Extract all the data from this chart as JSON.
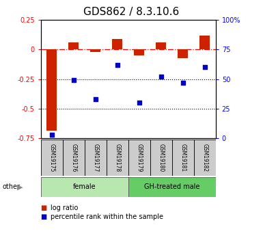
{
  "title": "GDS862 / 8.3.10.6",
  "samples": [
    "GSM19175",
    "GSM19176",
    "GSM19177",
    "GSM19178",
    "GSM19179",
    "GSM19180",
    "GSM19181",
    "GSM19182"
  ],
  "log_ratio": [
    -0.69,
    0.06,
    -0.02,
    0.09,
    -0.05,
    0.06,
    -0.07,
    0.12
  ],
  "percentile_rank": [
    3,
    49,
    33,
    62,
    30,
    52,
    47,
    60
  ],
  "groups": [
    {
      "label": "female",
      "start": 0,
      "end": 4,
      "color": "#b8e8b0"
    },
    {
      "label": "GH-treated male",
      "start": 4,
      "end": 8,
      "color": "#66cc66"
    }
  ],
  "bar_color": "#cc2200",
  "dot_color": "#0000cc",
  "ylim_left": [
    -0.75,
    0.25
  ],
  "ylim_right": [
    0,
    100
  ],
  "yticks_left": [
    0.25,
    0,
    -0.25,
    -0.5,
    -0.75
  ],
  "yticks_right": [
    100,
    75,
    50,
    25,
    0
  ],
  "dotted_lines": [
    -0.25,
    -0.5
  ],
  "title_fontsize": 11,
  "tick_fontsize": 7,
  "label_fontsize": 5.5,
  "group_fontsize": 7,
  "legend_items": [
    "log ratio",
    "percentile rank within the sample"
  ],
  "other_label": "other",
  "sample_box_color": "#cccccc"
}
